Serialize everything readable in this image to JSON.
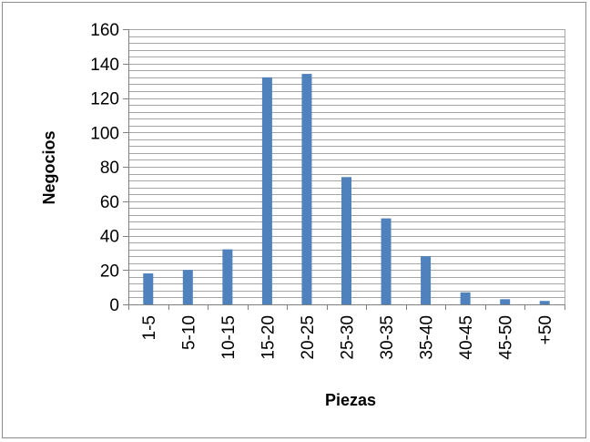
{
  "chart_data": {
    "type": "bar",
    "title": "",
    "xlabel": "Piezas",
    "ylabel": "Negocios",
    "categories": [
      "1-5",
      "5-10",
      "10-15",
      "15-20",
      "20-25",
      "25-30",
      "30-35",
      "35-40",
      "40-45",
      "45-50",
      "+50"
    ],
    "values": [
      18,
      20,
      32,
      132,
      134,
      74,
      50,
      28,
      7,
      3,
      2
    ],
    "ylim": [
      0,
      160
    ],
    "yticks": [
      0,
      20,
      40,
      60,
      80,
      100,
      120,
      140,
      160
    ],
    "minor_gridline_step": 4,
    "grid": true,
    "legend": "none",
    "bar_color": "#4f81bd",
    "gridline_color": "#a6a6a6"
  }
}
